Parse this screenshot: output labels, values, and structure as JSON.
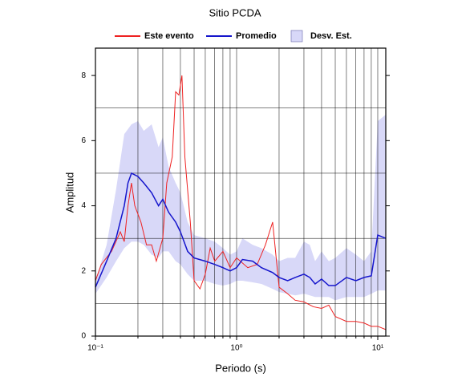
{
  "chart_data": {
    "type": "line",
    "title": "Sitio PCDA",
    "xlabel": "Periodo (s)",
    "ylabel": "Amplitud",
    "xscale": "log",
    "xlim": [
      0.1,
      11.4
    ],
    "ylim": [
      0,
      8.84
    ],
    "xticks": [
      {
        "value": 0.1,
        "label": "10⁻¹"
      },
      {
        "value": 1,
        "label": "10⁰"
      },
      {
        "value": 10,
        "label": "10¹"
      }
    ],
    "xminorticks": [
      0.2,
      0.3,
      0.4,
      0.5,
      0.6,
      0.7,
      0.8,
      0.9,
      2,
      3,
      4,
      5,
      6,
      7,
      8,
      9
    ],
    "yticks": [
      0,
      2,
      4,
      6,
      8
    ],
    "ygridlines": [
      1,
      3,
      5,
      7
    ],
    "grid": true,
    "series": [
      {
        "name": "Este evento",
        "color": "#ee2222",
        "x": [
          0.1,
          0.11,
          0.13,
          0.15,
          0.16,
          0.17,
          0.18,
          0.19,
          0.21,
          0.23,
          0.25,
          0.27,
          0.3,
          0.32,
          0.35,
          0.37,
          0.39,
          0.41,
          0.43,
          0.47,
          0.5,
          0.55,
          0.6,
          0.65,
          0.7,
          0.8,
          0.9,
          1.0,
          1.2,
          1.4,
          1.6,
          1.8,
          2.0,
          2.3,
          2.6,
          3.0,
          3.5,
          4.0,
          4.5,
          5.0,
          6.0,
          7.0,
          8.0,
          9.0,
          10,
          11.4
        ],
        "values": [
          1.7,
          2.2,
          2.6,
          3.2,
          2.9,
          4.0,
          4.7,
          4.0,
          3.5,
          2.8,
          2.8,
          2.3,
          3.0,
          4.7,
          5.5,
          7.5,
          7.4,
          8.0,
          5.5,
          3.5,
          1.7,
          1.45,
          1.9,
          2.7,
          2.3,
          2.6,
          2.1,
          2.4,
          2.1,
          2.2,
          2.8,
          3.5,
          1.5,
          1.3,
          1.1,
          1.05,
          0.9,
          0.85,
          0.95,
          0.6,
          0.45,
          0.45,
          0.4,
          0.3,
          0.3,
          0.2
        ]
      },
      {
        "name": "Promedio",
        "color": "#1515cc",
        "x": [
          0.1,
          0.12,
          0.14,
          0.16,
          0.17,
          0.18,
          0.2,
          0.22,
          0.25,
          0.28,
          0.3,
          0.33,
          0.37,
          0.4,
          0.45,
          0.5,
          0.6,
          0.7,
          0.8,
          0.9,
          1.0,
          1.1,
          1.3,
          1.5,
          1.8,
          2.0,
          2.3,
          2.6,
          3.0,
          3.3,
          3.6,
          4.0,
          4.5,
          5.0,
          6.0,
          7.0,
          8.0,
          9.0,
          10,
          11.4
        ],
        "values": [
          1.5,
          2.3,
          3.0,
          4.0,
          4.7,
          5.0,
          4.9,
          4.7,
          4.4,
          4.0,
          4.2,
          3.8,
          3.5,
          3.2,
          2.6,
          2.4,
          2.3,
          2.2,
          2.1,
          2.0,
          2.1,
          2.35,
          2.3,
          2.1,
          1.95,
          1.8,
          1.7,
          1.8,
          1.9,
          1.8,
          1.6,
          1.75,
          1.55,
          1.55,
          1.8,
          1.7,
          1.8,
          1.85,
          3.1,
          3.0
        ]
      },
      {
        "name": "Desv. Est.",
        "color": "#d8d8f8",
        "x": [
          0.1,
          0.12,
          0.14,
          0.16,
          0.18,
          0.2,
          0.22,
          0.25,
          0.28,
          0.3,
          0.33,
          0.37,
          0.4,
          0.45,
          0.5,
          0.6,
          0.7,
          0.8,
          0.9,
          1.0,
          1.1,
          1.3,
          1.5,
          1.8,
          2.0,
          2.3,
          2.6,
          3.0,
          3.3,
          3.6,
          4.0,
          4.5,
          5.0,
          6.0,
          7.0,
          8.0,
          9.0,
          10,
          11.4
        ],
        "lower": [
          1.3,
          1.8,
          2.3,
          2.7,
          2.9,
          2.9,
          2.8,
          2.5,
          2.4,
          2.6,
          2.6,
          2.3,
          2.2,
          1.9,
          1.7,
          1.7,
          1.6,
          1.55,
          1.6,
          1.7,
          1.7,
          1.65,
          1.6,
          1.45,
          1.35,
          1.3,
          1.25,
          1.3,
          1.25,
          1.2,
          1.2,
          1.2,
          1.1,
          1.2,
          1.2,
          1.2,
          1.3,
          1.4,
          1.4
        ],
        "upper": [
          1.7,
          2.8,
          4.5,
          6.2,
          6.5,
          6.6,
          6.3,
          6.5,
          5.8,
          6.1,
          5.2,
          4.7,
          4.4,
          3.5,
          3.1,
          3.0,
          2.9,
          2.7,
          2.5,
          2.6,
          3.0,
          2.8,
          2.7,
          2.5,
          2.3,
          2.4,
          2.4,
          2.9,
          2.8,
          2.3,
          2.6,
          2.3,
          2.4,
          2.7,
          2.5,
          2.3,
          2.6,
          6.6,
          6.8
        ]
      }
    ]
  }
}
